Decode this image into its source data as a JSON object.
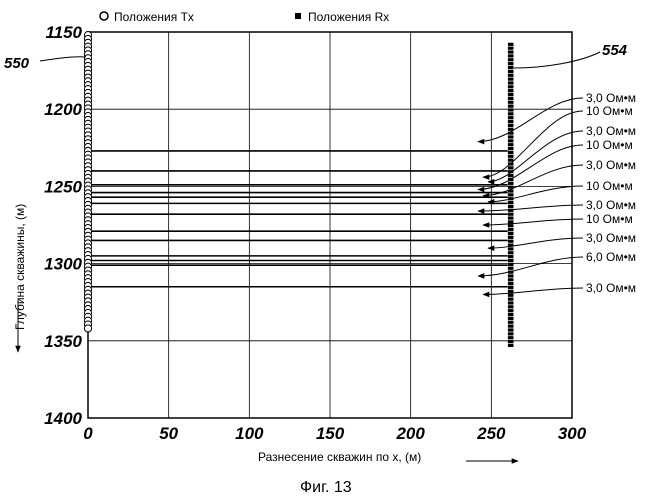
{
  "legend": {
    "tx_label": "Положения Tx",
    "rx_label": "Положения Rx"
  },
  "axes": {
    "xlabel": "Разнесение скважин по x, (м)",
    "ylabel": "Глубина скважины, (м)",
    "x_ticks": [
      "0",
      "50",
      "100",
      "150",
      "200",
      "250",
      "300"
    ],
    "y_ticks": [
      "1150",
      "1200",
      "1250",
      "1300",
      "1350",
      "1400"
    ],
    "x_range": [
      0,
      300
    ],
    "y_range": [
      1150,
      1400
    ]
  },
  "reference_labels": {
    "tx_well": "550",
    "rx_well": "554"
  },
  "caption": "Фиг. 13",
  "tx_positions": {
    "x": 0,
    "depth_start": 1152,
    "depth_end": 1342,
    "spacing": 2.5
  },
  "rx_positions": {
    "x": 262,
    "depth_start": 1158,
    "depth_end": 1354,
    "spacing": 2.5
  },
  "layer_boundaries": [
    1227,
    1240,
    1249,
    1254,
    1257,
    1261,
    1268,
    1279,
    1285,
    1295,
    1298,
    1301,
    1315
  ],
  "layer_resistivities": [
    "3,0 Ом•м",
    "10 Ом•м",
    "3,0 Ом•м",
    "10 Ом•м",
    "3,0 Ом•м",
    "10 Ом•м",
    "3,0 Ом•м",
    "10 Ом•м",
    "3,0 Ом•м",
    "6,0 Ом•м",
    "3,0 Ом•м"
  ],
  "layer_arrow_targets": [
    1221,
    1244,
    1247,
    1252,
    1256,
    1260,
    1266,
    1275,
    1290,
    1308,
    1320
  ]
}
